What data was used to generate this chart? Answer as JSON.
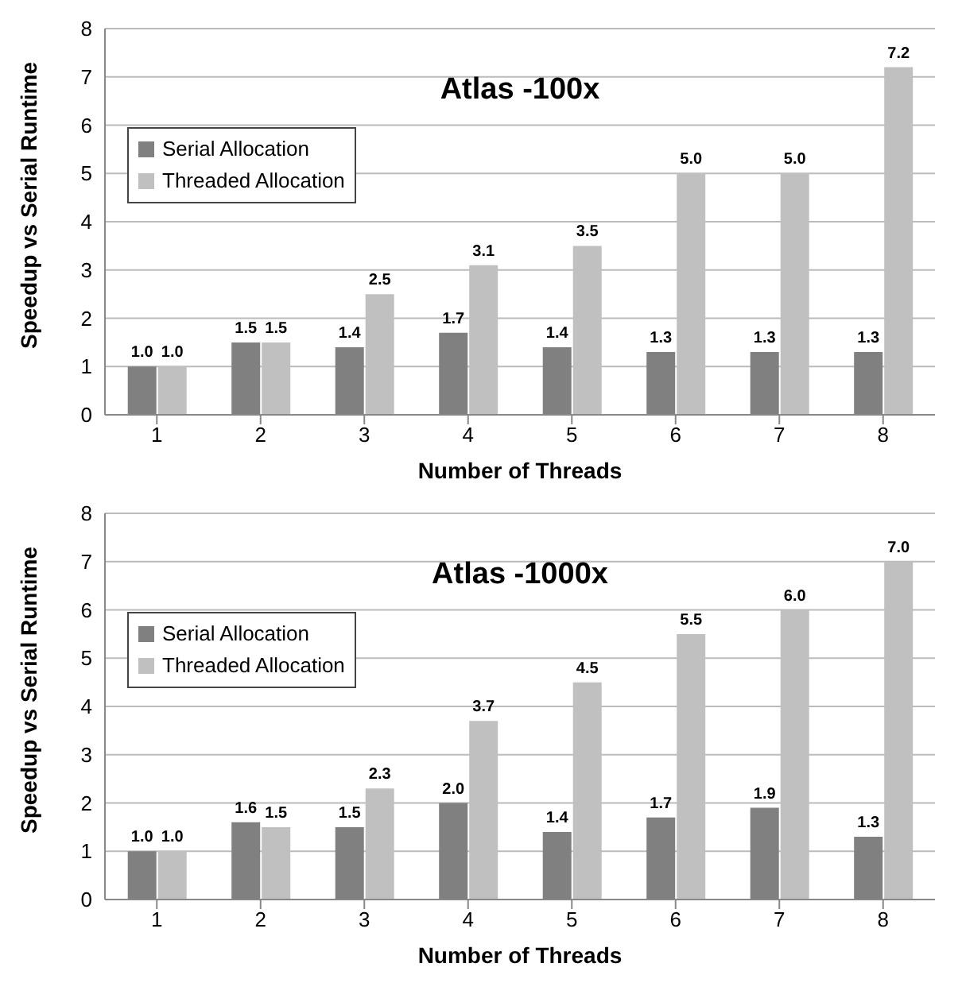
{
  "chart_data": [
    {
      "type": "bar",
      "title": "Atlas -100x",
      "xlabel": "Number of Threads",
      "ylabel": "Speedup vs Serial Runtime",
      "categories": [
        "1",
        "2",
        "3",
        "4",
        "5",
        "6",
        "7",
        "8"
      ],
      "series": [
        {
          "name": "Serial Allocation",
          "color": "#808080",
          "values": [
            1.0,
            1.5,
            1.4,
            1.7,
            1.4,
            1.3,
            1.3,
            1.3
          ],
          "value_labels": [
            "1.0",
            "1.5",
            "1.4",
            "1.7",
            "1.4",
            "1.3",
            "1.3",
            "1.3"
          ]
        },
        {
          "name": "Threaded Allocation",
          "color": "#c0c0c0",
          "values": [
            1.0,
            1.5,
            2.5,
            3.1,
            3.5,
            5.0,
            5.0,
            7.2
          ],
          "value_labels": [
            "1.0",
            "1.5",
            "2.5",
            "3.1",
            "3.5",
            "5.0",
            "5.0",
            "7.2"
          ]
        }
      ],
      "ylim": [
        0,
        8
      ],
      "yticks": [
        0,
        1,
        2,
        3,
        4,
        5,
        6,
        7,
        8
      ],
      "grid": "y",
      "legend": "top left"
    },
    {
      "type": "bar",
      "title": "Atlas -1000x",
      "xlabel": "Number of Threads",
      "ylabel": "Speedup vs Serial Runtime",
      "categories": [
        "1",
        "2",
        "3",
        "4",
        "5",
        "6",
        "7",
        "8"
      ],
      "series": [
        {
          "name": "Serial Allocation",
          "color": "#808080",
          "values": [
            1.0,
            1.6,
            1.5,
            2.0,
            1.4,
            1.7,
            1.9,
            1.3
          ],
          "value_labels": [
            "1.0",
            "1.6",
            "1.5",
            "2.0",
            "1.4",
            "1.7",
            "1.9",
            "1.3"
          ]
        },
        {
          "name": "Threaded Allocation",
          "color": "#c0c0c0",
          "values": [
            1.0,
            1.5,
            2.3,
            3.7,
            4.5,
            5.5,
            6.0,
            7.0
          ],
          "value_labels": [
            "1.0",
            "1.5",
            "2.3",
            "3.7",
            "4.5",
            "5.5",
            "6.0",
            "7.0"
          ]
        }
      ],
      "ylim": [
        0,
        8
      ],
      "yticks": [
        0,
        1,
        2,
        3,
        4,
        5,
        6,
        7,
        8
      ],
      "grid": "y",
      "legend": "top left"
    }
  ]
}
